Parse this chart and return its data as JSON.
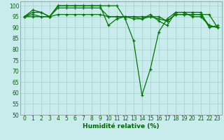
{
  "xlabel": "Humidité relative (%)",
  "xlim": [
    -0.5,
    23.5
  ],
  "ylim": [
    50,
    102
  ],
  "yticks": [
    50,
    55,
    60,
    65,
    70,
    75,
    80,
    85,
    90,
    95,
    100
  ],
  "xticks": [
    0,
    1,
    2,
    3,
    4,
    5,
    6,
    7,
    8,
    9,
    10,
    11,
    12,
    13,
    14,
    15,
    16,
    17,
    18,
    19,
    20,
    21,
    22,
    23
  ],
  "xtick_labels": [
    "0",
    "1",
    "2",
    "3",
    "4",
    "5",
    "6",
    "7",
    "8",
    "9",
    "10",
    "11",
    "12",
    "13",
    "14",
    "15",
    "16",
    "17",
    "18",
    "19",
    "20",
    "21",
    "22",
    "23"
  ],
  "background_color": "#c8ecec",
  "grid_color": "#aacccc",
  "line_color": "#007700",
  "series": [
    [
      95,
      98,
      97,
      95,
      100,
      100,
      100,
      100,
      100,
      100,
      100,
      100,
      94,
      84,
      59,
      71,
      88,
      94,
      97,
      97,
      95,
      95,
      91,
      90
    ],
    [
      95,
      97,
      97,
      95,
      100,
      100,
      100,
      100,
      100,
      100,
      91,
      94,
      95,
      94,
      94,
      96,
      93,
      91,
      97,
      97,
      97,
      97,
      90,
      91
    ],
    [
      95,
      96,
      95,
      95,
      99,
      99,
      99,
      99,
      99,
      99,
      95,
      95,
      95,
      95,
      95,
      95,
      95,
      93,
      96,
      96,
      96,
      96,
      96,
      90
    ],
    [
      95,
      95,
      95,
      95,
      96,
      96,
      96,
      96,
      96,
      96,
      95,
      95,
      95,
      95,
      94,
      95,
      94,
      93,
      96,
      96,
      96,
      96,
      91,
      90
    ]
  ],
  "marker": "+",
  "marker_size": 3,
  "line_width": 0.9,
  "tick_fontsize": 5.5,
  "xlabel_fontsize": 6.5
}
